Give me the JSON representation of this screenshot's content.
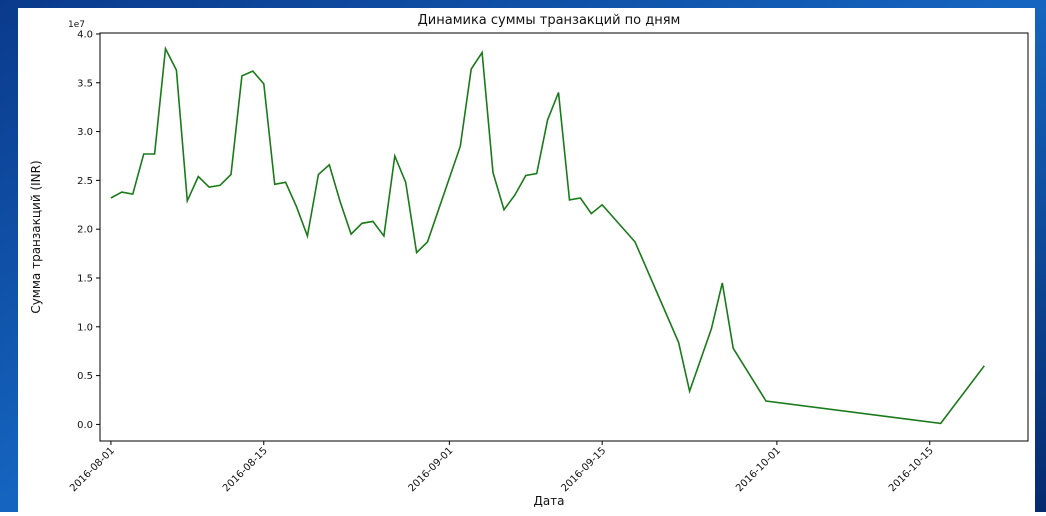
{
  "chart_data": {
    "type": "line",
    "title": "Динамика суммы транзакций по дням",
    "x_label": "Дата",
    "y_label": "Сумма транзакций (INR)",
    "y_offset_label": "1e7",
    "x": [
      "2016-08-01",
      "2016-08-02",
      "2016-08-03",
      "2016-08-04",
      "2016-08-05",
      "2016-08-06",
      "2016-08-07",
      "2016-08-08",
      "2016-08-09",
      "2016-08-10",
      "2016-08-11",
      "2016-08-12",
      "2016-08-13",
      "2016-08-14",
      "2016-08-15",
      "2016-08-16",
      "2016-08-17",
      "2016-08-18",
      "2016-08-19",
      "2016-08-20",
      "2016-08-21",
      "2016-08-22",
      "2016-08-23",
      "2016-08-24",
      "2016-08-25",
      "2016-08-26",
      "2016-08-27",
      "2016-08-28",
      "2016-08-29",
      "2016-08-30",
      "2016-09-02",
      "2016-09-03",
      "2016-09-04",
      "2016-09-05",
      "2016-09-06",
      "2016-09-07",
      "2016-09-08",
      "2016-09-09",
      "2016-09-10",
      "2016-09-11",
      "2016-09-12",
      "2016-09-13",
      "2016-09-14",
      "2016-09-15",
      "2016-09-18",
      "2016-09-22",
      "2016-09-23",
      "2016-09-25",
      "2016-09-26",
      "2016-09-27",
      "2016-09-30",
      "2016-10-16",
      "2016-10-20"
    ],
    "series": [
      {
        "name": "Сумма транзакций",
        "color": "#1a7a1a",
        "values": [
          2.32,
          2.38,
          2.36,
          2.77,
          2.77,
          3.85,
          3.63,
          2.29,
          2.54,
          2.43,
          2.45,
          2.56,
          3.57,
          3.62,
          3.49,
          2.46,
          2.48,
          2.23,
          1.93,
          2.56,
          2.66,
          2.28,
          1.95,
          2.06,
          2.08,
          1.93,
          2.75,
          2.48,
          1.76,
          1.87,
          2.85,
          3.64,
          3.81,
          2.58,
          2.2,
          2.35,
          2.55,
          2.57,
          3.12,
          3.4,
          2.3,
          2.32,
          2.16,
          2.25,
          1.87,
          0.84,
          0.34,
          0.98,
          1.45,
          0.78,
          0.24,
          0.01,
          0.6
        ]
      }
    ],
    "xlim": [
      "2016-07-31",
      "2016-10-24"
    ],
    "xticks": [
      "2016-08-01",
      "2016-08-15",
      "2016-09-01",
      "2016-09-15",
      "2016-10-01",
      "2016-10-15"
    ],
    "ylim": [
      -0.17,
      4.01
    ],
    "yticks": [
      {
        "value": 0,
        "label": "0.0"
      },
      {
        "value": 0.5,
        "label": "0.5"
      },
      {
        "value": 1,
        "label": "1.0"
      },
      {
        "value": 1.5,
        "label": "1.5"
      },
      {
        "value": 2,
        "label": "2.0"
      },
      {
        "value": 2.5,
        "label": "2.5"
      },
      {
        "value": 3,
        "label": "3.0"
      },
      {
        "value": 3.5,
        "label": "3.5"
      },
      {
        "value": 4,
        "label": "4.0"
      }
    ]
  }
}
